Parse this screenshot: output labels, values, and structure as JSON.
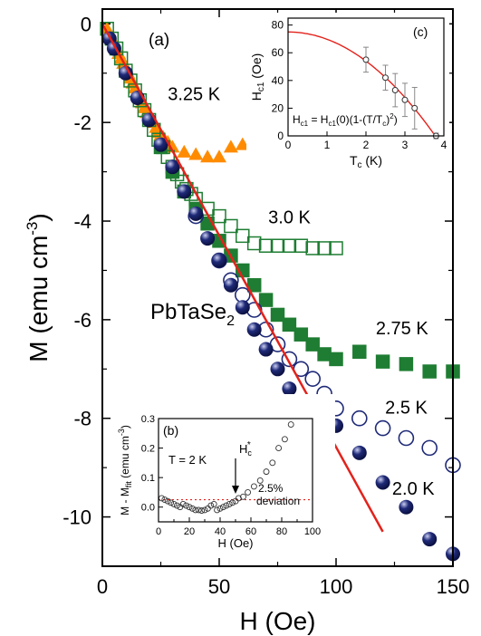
{
  "chart_data": [
    {
      "panel": "(a)",
      "type": "scatter",
      "xlabel": "H (Oe)",
      "ylabel": "M (emu cm",
      "ylabel_sup": "-3",
      "ylabel_close": ")",
      "xlim": [
        0,
        150
      ],
      "ylim": [
        -11,
        0.3
      ],
      "xticks": [
        0,
        50,
        100,
        150
      ],
      "yticks": [
        0,
        -2,
        -4,
        -6,
        -8,
        -10
      ],
      "material": "PbTaSe",
      "material_sub": "2",
      "colors": {
        "orange": "#ff8c00",
        "green": "#1e7d32",
        "navy": "#1f2a78",
        "fit": "#e3221b"
      },
      "series": [
        {
          "name": "3.25 K",
          "marker": "triangle",
          "fill": "filled",
          "color": "orange",
          "points": [
            [
              2,
              -0.1
            ],
            [
              3,
              -0.2
            ],
            [
              4,
              -0.3
            ],
            [
              5,
              -0.4
            ],
            [
              6,
              -0.5
            ],
            [
              7,
              -0.6
            ],
            [
              8,
              -0.7
            ],
            [
              9,
              -0.8
            ],
            [
              10,
              -0.9
            ],
            [
              11,
              -1.0
            ],
            [
              12,
              -1.1
            ],
            [
              13,
              -1.2
            ],
            [
              14,
              -1.3
            ],
            [
              15,
              -1.4
            ],
            [
              16,
              -1.5
            ],
            [
              17,
              -1.6
            ],
            [
              18,
              -1.7
            ],
            [
              19,
              -1.8
            ],
            [
              20,
              -1.85
            ],
            [
              21,
              -1.95
            ],
            [
              22,
              -2.0
            ],
            [
              23,
              -2.1
            ],
            [
              24,
              -2.2
            ],
            [
              25,
              -2.25
            ],
            [
              26,
              -2.3
            ],
            [
              28,
              -2.4
            ],
            [
              30,
              -2.5
            ],
            [
              35,
              -2.6
            ],
            [
              40,
              -2.65
            ],
            [
              45,
              -2.7
            ],
            [
              50,
              -2.7
            ],
            [
              55,
              -2.5
            ],
            [
              60,
              -2.45
            ],
            [
              65,
              -2.5
            ],
            [
              70,
              -2.45
            ]
          ]
        },
        {
          "name": "3.0 K",
          "marker": "square",
          "fill": "open",
          "color": "green",
          "points": [
            [
              2,
              -0.1
            ],
            [
              4,
              -0.3
            ],
            [
              6,
              -0.5
            ],
            [
              8,
              -0.7
            ],
            [
              10,
              -0.95
            ],
            [
              12,
              -1.15
            ],
            [
              14,
              -1.35
            ],
            [
              16,
              -1.55
            ],
            [
              18,
              -1.75
            ],
            [
              20,
              -1.95
            ],
            [
              22,
              -2.15
            ],
            [
              24,
              -2.35
            ],
            [
              26,
              -2.5
            ],
            [
              28,
              -2.7
            ],
            [
              30,
              -2.9
            ],
            [
              32,
              -3.05
            ],
            [
              34,
              -3.2
            ],
            [
              36,
              -3.35
            ],
            [
              38,
              -3.45
            ],
            [
              40,
              -3.55
            ],
            [
              45,
              -3.75
            ],
            [
              50,
              -3.9
            ],
            [
              55,
              -4.1
            ],
            [
              60,
              -4.3
            ],
            [
              65,
              -4.45
            ],
            [
              70,
              -4.5
            ],
            [
              75,
              -4.5
            ],
            [
              80,
              -4.5
            ],
            [
              85,
              -4.5
            ],
            [
              90,
              -4.55
            ],
            [
              95,
              -4.55
            ],
            [
              100,
              -4.55
            ]
          ]
        },
        {
          "name": "2.75 K",
          "marker": "square",
          "fill": "filled",
          "color": "green",
          "points": [
            [
              25,
              -2.5
            ],
            [
              30,
              -3.0
            ],
            [
              35,
              -3.4
            ],
            [
              40,
              -3.75
            ],
            [
              45,
              -4.05
            ],
            [
              50,
              -4.4
            ],
            [
              55,
              -4.7
            ],
            [
              60,
              -5.0
            ],
            [
              65,
              -5.3
            ],
            [
              70,
              -5.6
            ],
            [
              75,
              -5.9
            ],
            [
              80,
              -6.1
            ],
            [
              85,
              -6.3
            ],
            [
              90,
              -6.5
            ],
            [
              95,
              -6.7
            ],
            [
              100,
              -6.8
            ],
            [
              110,
              -6.65
            ],
            [
              120,
              -6.85
            ],
            [
              130,
              -6.9
            ],
            [
              140,
              -7.05
            ],
            [
              150,
              -7.05
            ]
          ]
        },
        {
          "name": "2.5 K",
          "marker": "circle",
          "fill": "open",
          "color": "navy",
          "points": [
            [
              40,
              -3.9
            ],
            [
              50,
              -4.8
            ],
            [
              55,
              -5.2
            ],
            [
              60,
              -5.5
            ],
            [
              65,
              -5.8
            ],
            [
              70,
              -6.2
            ],
            [
              75,
              -6.5
            ],
            [
              80,
              -6.8
            ],
            [
              85,
              -7.0
            ],
            [
              90,
              -7.2
            ],
            [
              95,
              -7.5
            ],
            [
              100,
              -7.8
            ],
            [
              110,
              -8.0
            ],
            [
              120,
              -8.2
            ],
            [
              130,
              -8.4
            ],
            [
              140,
              -8.6
            ],
            [
              150,
              -8.95
            ]
          ]
        },
        {
          "name": "2.0 K",
          "marker": "ball",
          "fill": "filled",
          "color": "navy",
          "points": [
            [
              3,
              -0.3
            ],
            [
              5,
              -0.5
            ],
            [
              10,
              -1.0
            ],
            [
              15,
              -1.5
            ],
            [
              20,
              -1.95
            ],
            [
              25,
              -2.45
            ],
            [
              30,
              -2.9
            ],
            [
              35,
              -3.4
            ],
            [
              40,
              -3.85
            ],
            [
              45,
              -4.35
            ],
            [
              50,
              -4.8
            ],
            [
              55,
              -5.3
            ],
            [
              60,
              -5.75
            ],
            [
              65,
              -6.2
            ],
            [
              70,
              -6.6
            ],
            [
              75,
              -7.0
            ],
            [
              80,
              -7.4
            ],
            [
              85,
              -7.75
            ],
            [
              90,
              -8.05
            ],
            [
              100,
              -8.15
            ],
            [
              110,
              -8.7
            ],
            [
              120,
              -9.3
            ],
            [
              130,
              -9.8
            ],
            [
              140,
              -10.45
            ],
            [
              150,
              -10.75
            ]
          ]
        }
      ],
      "fit_line": {
        "color": "fit",
        "points": [
          [
            0,
            0
          ],
          [
            120,
            -10.3
          ]
        ]
      },
      "labels": [
        {
          "text": "3.25 K",
          "x": 28,
          "y": -1.55
        },
        {
          "text": "3.0 K",
          "x": 71,
          "y": -4.05
        },
        {
          "text": "2.75 K",
          "x": 117,
          "y": -6.3
        },
        {
          "text": "2.5 K",
          "x": 121,
          "y": -7.9
        },
        {
          "text": "2.0 K",
          "x": 124,
          "y": -9.55
        }
      ]
    },
    {
      "panel": "(b)",
      "type": "scatter",
      "xlabel": "H (Oe)",
      "ylabel": "M - M",
      "ylabel_sub": "fit",
      "ylabel_tail": " (emu cm",
      "ylabel_sup": "-3",
      "ylabel_close": ")",
      "xlim": [
        0,
        100
      ],
      "ylim": [
        -0.05,
        0.3
      ],
      "xticks": [
        0,
        10,
        20,
        30,
        40,
        50,
        60,
        70,
        80,
        90,
        100
      ],
      "yticks": [
        0.0,
        0.1,
        0.2,
        0.3
      ],
      "condition": "T = 2 K",
      "hc_label": "H",
      "hc_sub": "c",
      "hc_sup": "*",
      "deviation_label": [
        "2.5%",
        "deviation"
      ],
      "deviation_level": 0.025,
      "points": [
        [
          2,
          0.03
        ],
        [
          4,
          0.025
        ],
        [
          6,
          0.02
        ],
        [
          8,
          0.015
        ],
        [
          10,
          0.01
        ],
        [
          12,
          0.005
        ],
        [
          14,
          0.0
        ],
        [
          16,
          0.01
        ],
        [
          18,
          0.005
        ],
        [
          20,
          0.0
        ],
        [
          22,
          -0.005
        ],
        [
          24,
          -0.01
        ],
        [
          26,
          -0.01
        ],
        [
          28,
          -0.012
        ],
        [
          30,
          -0.01
        ],
        [
          32,
          -0.005
        ],
        [
          34,
          0.005
        ],
        [
          36,
          0.01
        ],
        [
          38,
          -0.01
        ],
        [
          40,
          -0.005
        ],
        [
          42,
          0.0
        ],
        [
          44,
          0.005
        ],
        [
          46,
          0.01
        ],
        [
          48,
          0.015
        ],
        [
          50,
          0.02
        ],
        [
          52,
          0.03
        ],
        [
          55,
          0.035
        ],
        [
          58,
          0.05
        ],
        [
          62,
          0.07
        ],
        [
          66,
          0.09
        ],
        [
          70,
          0.12
        ],
        [
          74,
          0.15
        ],
        [
          78,
          0.2
        ],
        [
          82,
          0.23
        ],
        [
          86,
          0.28
        ]
      ],
      "arrow_x": 50
    },
    {
      "panel": "(c)",
      "type": "scatter",
      "xlabel": "T",
      "xlabel_sub": "c",
      "xlabel_tail": " (K)",
      "ylabel": "H",
      "ylabel_sub": "c1",
      "ylabel_tail": " (Oe)",
      "xlim": [
        0,
        4
      ],
      "ylim": [
        0,
        85
      ],
      "xticks": [
        0,
        1,
        2,
        3,
        4
      ],
      "yticks": [
        0,
        20,
        40,
        60,
        80
      ],
      "formula": "H",
      "formula_parts": [
        "c1",
        " = H",
        "c1",
        "(0)(1-(T/T",
        "c",
        ")",
        "2",
        ")"
      ],
      "fit": {
        "hc0": 75,
        "tc": 3.78
      },
      "points": [
        [
          2.0,
          55,
          9
        ],
        [
          2.5,
          42,
          9
        ],
        [
          2.75,
          33,
          12
        ],
        [
          3.0,
          26,
          12
        ],
        [
          3.25,
          20,
          15
        ],
        [
          3.8,
          0,
          2
        ]
      ]
    }
  ]
}
